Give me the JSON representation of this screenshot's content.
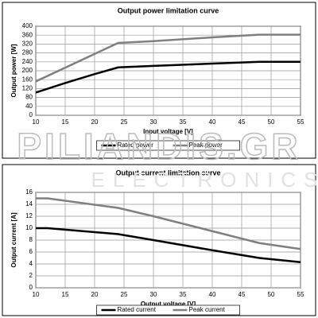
{
  "chart_data": [
    {
      "type": "line",
      "title": "Output power limitation curve",
      "x_label": "Input voltage [V]",
      "y_label": "Output power [W]",
      "xlim": [
        10,
        55
      ],
      "xticks": [
        10,
        15,
        20,
        25,
        30,
        35,
        40,
        45,
        50,
        55
      ],
      "ylim": [
        0,
        400
      ],
      "yticks": [
        0,
        40,
        80,
        120,
        160,
        200,
        240,
        280,
        320,
        360,
        400
      ],
      "grid": true,
      "legend": "bottom",
      "series": [
        {
          "name": "Rated power",
          "color": "#000000",
          "x": [
            10,
            15,
            20,
            24,
            30,
            40,
            48,
            55
          ],
          "values": [
            102,
            145,
            185,
            215,
            222,
            232,
            240,
            240
          ]
        },
        {
          "name": "Peak power",
          "color": "#808080",
          "x": [
            10,
            24,
            30,
            40,
            48,
            55
          ],
          "values": [
            152,
            325,
            333,
            350,
            362,
            362
          ]
        }
      ]
    },
    {
      "type": "line",
      "title": "Output current limitation curve",
      "x_label": "Output voltage [V]",
      "y_label": "Output current [A]",
      "xlim": [
        10,
        55
      ],
      "xticks": [
        10,
        15,
        20,
        25,
        30,
        35,
        40,
        45,
        50,
        55
      ],
      "ylim": [
        0,
        16
      ],
      "yticks": [
        0,
        2,
        4,
        6,
        8,
        10,
        12,
        14,
        16
      ],
      "grid": true,
      "legend": "bottom",
      "series": [
        {
          "name": "Rated current",
          "color": "#000000",
          "x": [
            10,
            12,
            24,
            30,
            40,
            48,
            55
          ],
          "values": [
            10,
            10,
            9,
            8,
            6.3,
            5,
            4.3
          ]
        },
        {
          "name": "Peak current",
          "color": "#808080",
          "x": [
            10,
            12,
            24,
            30,
            40,
            48,
            55
          ],
          "values": [
            15,
            15,
            13.4,
            12,
            9.5,
            7.5,
            6.5
          ]
        }
      ]
    }
  ],
  "watermark": {
    "brand": "PILIANDIS.GR",
    "sub": "ELECTRONICS"
  }
}
